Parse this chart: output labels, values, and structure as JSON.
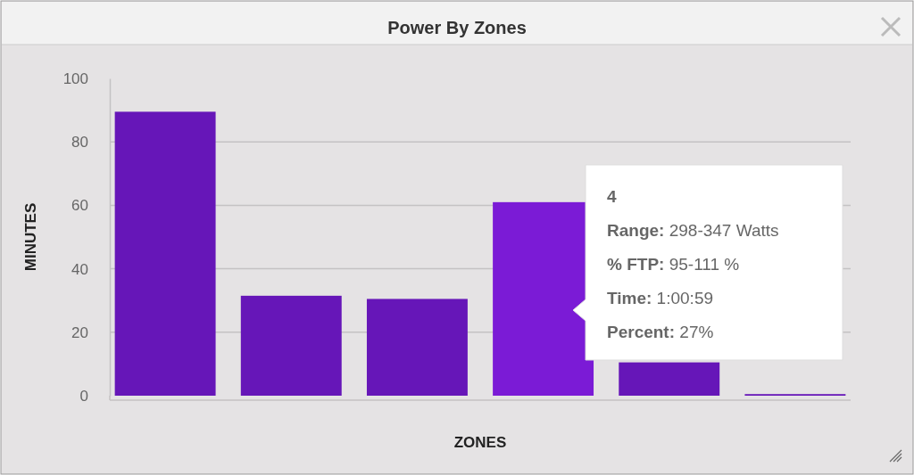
{
  "chart_data": {
    "type": "bar",
    "title": "Power By Zones",
    "xlabel": "ZONES",
    "ylabel": "MINUTES",
    "categories": [
      null,
      null,
      null,
      null,
      null,
      null
    ],
    "values": [
      89.5,
      31.5,
      30.5,
      61,
      10.5,
      0.5
    ],
    "colors": [
      "#6616b8",
      "#6616b8",
      "#6616b8",
      "#7b1bd6",
      "#6616b8",
      "#6616b8"
    ],
    "ylim": [
      0,
      100
    ],
    "yticks": [
      0,
      20,
      40,
      60,
      80,
      100
    ],
    "grid": "y",
    "annotations": [
      "4",
      "Range: 298-347 Watts",
      "% FTP: 95-111 %",
      "Time: 1:00:59",
      "Percent: 27%"
    ]
  }
}
